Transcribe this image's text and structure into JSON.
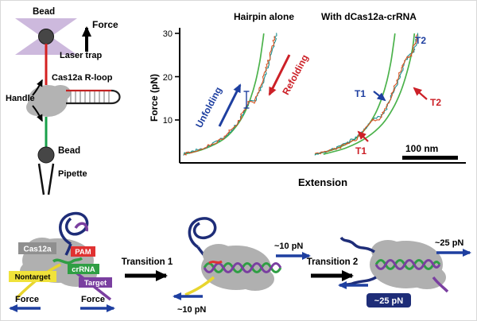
{
  "setup": {
    "bead_top_label": "Bead",
    "force_label": "Force",
    "laser_trap_label": "Laser trap",
    "rloop_label": "Cas12a R-loop",
    "handle_label": "Handle",
    "bead_bottom_label": "Bead",
    "pipette_label": "Pipette"
  },
  "plot": {
    "unfolding_label": "Unfolding",
    "refolding_label": "Refolding",
    "t2_blue": "T2",
    "t1_blue": "T1",
    "t2_red": "T2",
    "t1_red": "T1"
  },
  "mechanism": {
    "cas12a_label": "Cas12a",
    "pam_label": "PAM",
    "nontarget_label": "Nontarget",
    "crrna_label": "crRNA",
    "target_label": "Target",
    "force_left_label": "Force",
    "force_right_label": "Force",
    "transition1_label": "Transition 1",
    "transition2_label": "Transition 2",
    "pn10_top": "~10 pN",
    "pn10_bottom": "~10 pN",
    "pn25_top": "~25 pN",
    "pn25_bottom": "~25 pN"
  },
  "colors": {
    "accent_blue": "#1e3fa0",
    "accent_red": "#cc2027",
    "fit_green": "#4bb24b",
    "unfold_teal": "#1d8f8f",
    "refold_orange": "#d95321",
    "trap_purple": "#cdb9dd",
    "blob_gray": "#b0b0b0",
    "navy": "#1e2d78",
    "purple": "#7a3fa0",
    "yellow": "#e8d52e",
    "green": "#2f9e44",
    "pam_red": "#e03232",
    "label_gray": "#8f8f8f",
    "handle_red": "#d42020",
    "handle_green": "#18a04a"
  },
  "chart_data": {
    "type": "line",
    "xlabel": "Extension",
    "ylabel": "Force (pN)",
    "ylim": [
      0,
      30
    ],
    "ytick_labels": [
      "30",
      "20",
      "10"
    ],
    "x_units": "nm (relative, no tick labels shown)",
    "scale_bar_label": "100 nm",
    "grid": false,
    "legend": "none (annotated with arrows and T1/T2 labels)",
    "panels": [
      {
        "label": "Hairpin alone",
        "series": [
          {
            "name": "WLC fit",
            "kind": "fit",
            "color": "#4bb24b",
            "points": [
              [
                0,
                2
              ],
              [
                35,
                3.2
              ],
              [
                70,
                5.5
              ],
              [
                92,
                8.5
              ],
              [
                106,
                11.5
              ],
              [
                117,
                15
              ],
              [
                126,
                19
              ],
              [
                133,
                23.5
              ],
              [
                138,
                28
              ],
              [
                140,
                30
              ]
            ]
          },
          {
            "name": "Unfolding trace",
            "kind": "data",
            "color": "#1d8f8f",
            "points": [
              [
                0,
                2
              ],
              [
                38,
                3.5
              ],
              [
                72,
                6
              ],
              [
                96,
                9.5
              ],
              [
                110,
                13
              ],
              [
                117,
                14.5
              ],
              [
                126,
                14.5
              ],
              [
                134,
                17
              ],
              [
                143,
                20.5
              ],
              [
                152,
                24.5
              ],
              [
                158,
                27.5
              ],
              [
                162,
                30
              ]
            ]
          },
          {
            "name": "Refolding trace",
            "kind": "data",
            "color": "#d95321",
            "points": [
              [
                0,
                2
              ],
              [
                36,
                3.4
              ],
              [
                70,
                5.8
              ],
              [
                94,
                9.2
              ],
              [
                107,
                12.5
              ],
              [
                114,
                14
              ],
              [
                123,
                14
              ],
              [
                131,
                16.5
              ],
              [
                140,
                20
              ],
              [
                149,
                24
              ],
              [
                155,
                27
              ],
              [
                159,
                29.5
              ]
            ]
          }
        ]
      },
      {
        "label": "With dCas12a-crRNA",
        "series": [
          {
            "name": "WLC fit folded",
            "kind": "fit",
            "color": "#4bb24b",
            "points": [
              [
                0,
                2
              ],
              [
                35,
                3.2
              ],
              [
                70,
                5.5
              ],
              [
                92,
                8.5
              ],
              [
                106,
                11.5
              ],
              [
                117,
                15
              ],
              [
                126,
                19
              ],
              [
                133,
                23.5
              ],
              [
                138,
                28
              ],
              [
                140,
                30
              ]
            ]
          },
          {
            "name": "WLC fit extended",
            "kind": "fit",
            "color": "#4bb24b",
            "points": [
              [
                15,
                2
              ],
              [
                55,
                3.5
              ],
              [
                92,
                6
              ],
              [
                118,
                9
              ],
              [
                136,
                12.5
              ],
              [
                150,
                16.5
              ],
              [
                161,
                21
              ],
              [
                170,
                26
              ],
              [
                174,
                30
              ]
            ]
          },
          {
            "name": "Unfolding trace (T1, T2)",
            "kind": "data",
            "color": "#1d8f8f",
            "points": [
              [
                0,
                2
              ],
              [
                40,
                3.5
              ],
              [
                75,
                6
              ],
              [
                95,
                9
              ],
              [
                105,
                10.5
              ],
              [
                115,
                10.5
              ],
              [
                126,
                13
              ],
              [
                138,
                16.5
              ],
              [
                148,
                20
              ],
              [
                158,
                23.5
              ],
              [
                164,
                25
              ],
              [
                172,
                25.5
              ],
              [
                177,
                28
              ],
              [
                181,
                30
              ]
            ]
          },
          {
            "name": "Refolding trace (T2, T1)",
            "kind": "data",
            "color": "#d95321",
            "points": [
              [
                0,
                2
              ],
              [
                38,
                3.3
              ],
              [
                72,
                5.5
              ],
              [
                92,
                8.5
              ],
              [
                102,
                10
              ],
              [
                112,
                10
              ],
              [
                123,
                12.5
              ],
              [
                135,
                16
              ],
              [
                145,
                19.5
              ],
              [
                155,
                23
              ],
              [
                161,
                24.5
              ],
              [
                169,
                25
              ],
              [
                175,
                27.5
              ],
              [
                179,
                29.5
              ]
            ]
          }
        ]
      }
    ],
    "transitions": [
      {
        "label": "T1",
        "force": "~10 pN"
      },
      {
        "label": "T2",
        "force": "~25 pN"
      }
    ]
  }
}
